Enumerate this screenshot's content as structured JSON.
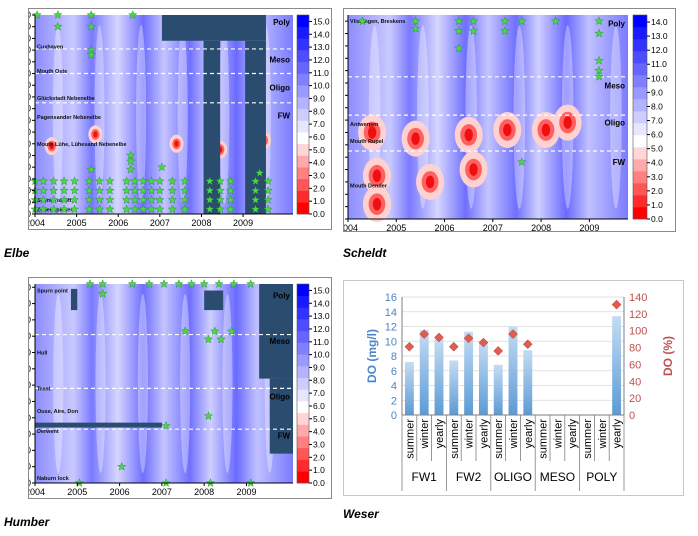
{
  "captions": {
    "elbe": "Elbe",
    "scheldt": "Scheldt",
    "humber": "Humber",
    "weser": "Weser"
  },
  "colorbar": {
    "ticks": [
      "0.0",
      "1.0",
      "2.0",
      "3.0",
      "4.0",
      "5.0",
      "6.0",
      "7.0",
      "8.0",
      "9.0",
      "10.0",
      "11.0",
      "12.0",
      "13.0",
      "14.0",
      "15.0"
    ],
    "colors": [
      "#ff0000",
      "#ff2a2a",
      "#ff5555",
      "#ff8080",
      "#ffaaaa",
      "#ffd5d5",
      "#ffffff",
      "#e6e6ff",
      "#ccccff",
      "#b3b3ff",
      "#9999ff",
      "#8080ff",
      "#6666ff",
      "#4d4dff",
      "#3333ff",
      "#1a1aff",
      "#0000ff"
    ]
  },
  "chart_data": [
    {
      "id": "elbe",
      "type": "heatmap",
      "title": "Elbe",
      "x_ticks": [
        "2004",
        "2005",
        "2006",
        "2007",
        "2008",
        "2009"
      ],
      "xlim": [
        2004,
        2010.2
      ],
      "y_ticks": [
        "0",
        "10",
        "20",
        "30",
        "40",
        "50",
        "60",
        "70",
        "80",
        "90",
        "100",
        "110",
        "120",
        "130",
        "140",
        "150",
        "160",
        "170"
      ],
      "ylim": [
        0,
        170
      ],
      "colorbar_ticks": [
        "0.0",
        "1.0",
        "2.0",
        "3.0",
        "4.0",
        "5.0",
        "6.0",
        "7.0",
        "8.0",
        "9.0",
        "10.0",
        "11.0",
        "12.0",
        "13.0",
        "14.0",
        "15.0"
      ],
      "zones": [
        {
          "label": "Poly",
          "y": 164
        },
        {
          "label": "Meso",
          "y": 132
        },
        {
          "label": "Oligo",
          "y": 108
        },
        {
          "label": "FW",
          "y": 84
        }
      ],
      "zone_boundaries": [
        141,
        120,
        95
      ],
      "sites": [
        {
          "label": "Cuxhaven",
          "y": 143
        },
        {
          "label": "Mouth Oste",
          "y": 122
        },
        {
          "label": "Glückstadt Nebenelbe",
          "y": 99
        },
        {
          "label": "Pagensander Nebenelbe",
          "y": 83
        },
        {
          "label": "Mouth Lühe, Lühesand Nebenelbe",
          "y": 60
        },
        {
          "label": "Seemanshöft",
          "y": 12
        },
        {
          "label": "Zollenspieker",
          "y": 4
        }
      ],
      "low_do_patches": [
        {
          "x": 2004.4,
          "y": 58
        },
        {
          "x": 2005.45,
          "y": 68
        },
        {
          "x": 2007.4,
          "y": 60
        },
        {
          "x": 2008.45,
          "y": 55
        },
        {
          "x": 2009.5,
          "y": 63
        }
      ]
    },
    {
      "id": "scheldt",
      "type": "heatmap",
      "title": "Scheldt",
      "x_ticks": [
        "2004",
        "2005",
        "2006",
        "2007",
        "2008",
        "2009"
      ],
      "xlim": [
        2004,
        2009.8
      ],
      "y_ticks": [
        "0",
        "10",
        "20",
        "30",
        "40",
        "50",
        "60",
        "70",
        "80",
        "90",
        "100",
        "110",
        "120",
        "130",
        "140",
        "150",
        "160"
      ],
      "ylim": [
        0,
        165
      ],
      "colorbar_ticks": [
        "0.0",
        "1.0",
        "2.0",
        "3.0",
        "4.0",
        "5.0",
        "6.0",
        "7.0",
        "8.0",
        "9.0",
        "10.0",
        "11.0",
        "12.0",
        "13.0",
        "14.0"
      ],
      "zones": [
        {
          "label": "Poly",
          "y": 158
        },
        {
          "label": "Meso",
          "y": 108
        },
        {
          "label": "Oligo",
          "y": 78
        },
        {
          "label": "FW",
          "y": 46
        }
      ],
      "zone_boundaries": [
        115,
        84,
        55
      ],
      "sites": [
        {
          "label": "Vlissingen, Breskens",
          "y": 160
        },
        {
          "label": "Antwerpen",
          "y": 77
        },
        {
          "label": "Mouth Rupel",
          "y": 63
        },
        {
          "label": "Mouth Dender",
          "y": 27
        }
      ],
      "low_do_patches": [
        {
          "x": 2004.5,
          "y": 70
        },
        {
          "x": 2005.4,
          "y": 65
        },
        {
          "x": 2006.5,
          "y": 68
        },
        {
          "x": 2007.3,
          "y": 72
        },
        {
          "x": 2008.1,
          "y": 72
        },
        {
          "x": 2008.55,
          "y": 78
        },
        {
          "x": 2004.6,
          "y": 35
        },
        {
          "x": 2005.7,
          "y": 30
        },
        {
          "x": 2006.6,
          "y": 40
        },
        {
          "x": 2004.6,
          "y": 12
        }
      ]
    },
    {
      "id": "humber",
      "type": "heatmap",
      "title": "Humber",
      "x_ticks": [
        "2004",
        "2005",
        "2006",
        "2007",
        "2008",
        "2009"
      ],
      "xlim": [
        2004,
        2010.1
      ],
      "y_ticks": [
        "0",
        "10",
        "20",
        "30",
        "40",
        "50",
        "60",
        "70",
        "80",
        "90",
        "100",
        "110",
        "120"
      ],
      "ylim": [
        0,
        122
      ],
      "colorbar_ticks": [
        "0.0",
        "1.0",
        "2.0",
        "3.0",
        "4.0",
        "5.0",
        "6.0",
        "7.0",
        "8.0",
        "9.0",
        "10.0",
        "11.0",
        "12.0",
        "13.0",
        "14.0",
        "15.0"
      ],
      "zones": [
        {
          "label": "Poly",
          "y": 115
        },
        {
          "label": "Meso",
          "y": 87
        },
        {
          "label": "Oligo",
          "y": 53
        },
        {
          "label": "FW",
          "y": 29
        }
      ],
      "zone_boundaries": [
        91,
        58,
        33
      ],
      "sites": [
        {
          "label": "Spurn point",
          "y": 118
        },
        {
          "label": "Hull",
          "y": 80
        },
        {
          "label": "Trent",
          "y": 58
        },
        {
          "label": "Ouse, Aire, Don",
          "y": 44
        },
        {
          "label": "Derwent",
          "y": 32
        },
        {
          "label": "Naburn lock",
          "y": 3
        }
      ],
      "low_do_patches": []
    },
    {
      "id": "weser",
      "type": "bar",
      "title": "Weser",
      "categories": [
        "summer",
        "winter",
        "yearly",
        "summer",
        "winter",
        "yearly",
        "summer",
        "winter",
        "yearly",
        "summer",
        "winter",
        "yearly",
        "summer",
        "winter",
        "yearly"
      ],
      "groups": [
        "FW1",
        "FW2",
        "OLIGO",
        "MESO",
        "POLY"
      ],
      "series": [
        {
          "name": "DO (mg/l)",
          "type": "bar",
          "axis": "left",
          "values": [
            7.2,
            11.5,
            10.3,
            7.4,
            11.3,
            9.9,
            6.8,
            12.0,
            8.8,
            null,
            null,
            null,
            null,
            null,
            13.4
          ]
        },
        {
          "name": "DO (%)",
          "type": "marker",
          "axis": "right",
          "values": [
            81,
            96,
            92,
            81,
            91,
            86,
            76,
            96,
            84,
            null,
            null,
            null,
            null,
            null,
            131
          ]
        }
      ],
      "ylabel": "DO (mg/l)",
      "ylim": [
        0,
        16
      ],
      "y_ticks": [
        "0",
        "2",
        "4",
        "6",
        "8",
        "10",
        "12",
        "14",
        "16"
      ],
      "y2label": "DO (%)",
      "y2lim": [
        0,
        140
      ],
      "y2_ticks": [
        "0",
        "20",
        "40",
        "60",
        "80",
        "100",
        "120",
        "140"
      ],
      "colors": {
        "bar": "#5b9bd5",
        "bar_light": "#c5dcf3",
        "marker": "#e05d52",
        "left_axis": "#4a86c8",
        "right_axis": "#c0504d"
      }
    }
  ]
}
